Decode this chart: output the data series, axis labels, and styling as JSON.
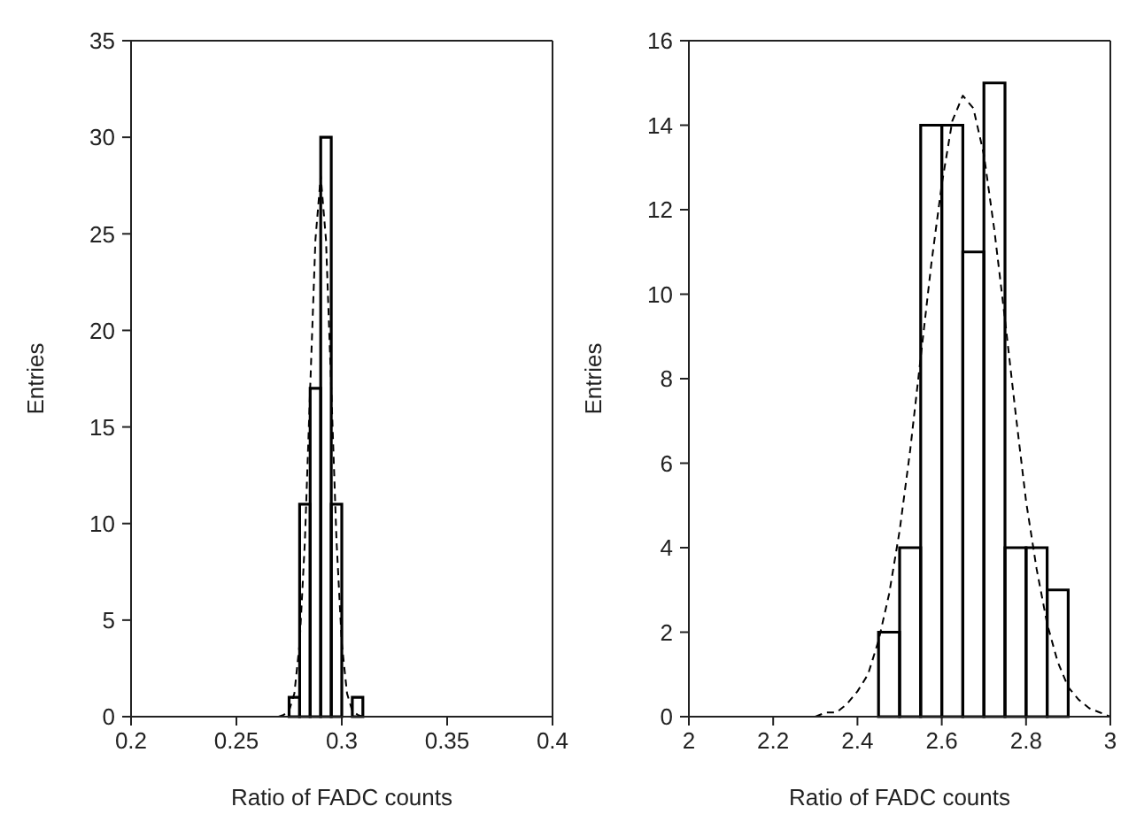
{
  "chart_data": [
    {
      "type": "histogram",
      "xlabel": "Ratio of FADC counts",
      "ylabel": "Entries",
      "color": "#000000",
      "xlim": [
        0.2,
        0.4
      ],
      "xticks": [
        0.2,
        0.25,
        0.3,
        0.35,
        0.4
      ],
      "ylim": [
        0,
        35
      ],
      "yticks": [
        0,
        5,
        10,
        15,
        20,
        25,
        30,
        35
      ],
      "bins": [
        0.275,
        0.28,
        0.285,
        0.29,
        0.295,
        0.3,
        0.305,
        0.31
      ],
      "values": [
        1,
        11,
        17,
        30,
        11,
        0,
        1
      ],
      "series": [
        {
          "type": "line",
          "color": "#000000",
          "line_style": "dashed",
          "x": [
            0.27,
            0.2725,
            0.275,
            0.2775,
            0.28,
            0.2825,
            0.285,
            0.2875,
            0.29,
            0.2925,
            0.295,
            0.2975,
            0.3,
            0.3025,
            0.305,
            0.3075,
            0.31
          ],
          "values": [
            0,
            0.1,
            0.3,
            1.2,
            3.8,
            9.1,
            17,
            24.7,
            28,
            24.7,
            17,
            9.1,
            3.8,
            1.2,
            0.3,
            0.1,
            0
          ]
        }
      ]
    },
    {
      "type": "histogram",
      "xlabel": "Ratio of FADC counts",
      "ylabel": "Entries",
      "color": "#000000",
      "xlim": [
        2,
        3
      ],
      "xticks": [
        2,
        2.2,
        2.4,
        2.6,
        2.8,
        3
      ],
      "ylim": [
        0,
        16
      ],
      "yticks": [
        0,
        2,
        4,
        6,
        8,
        10,
        12,
        14,
        16
      ],
      "bins": [
        2.45,
        2.5,
        2.55,
        2.6,
        2.65,
        2.7,
        2.75,
        2.8,
        2.85,
        2.9
      ],
      "values": [
        2,
        4,
        14,
        14,
        11,
        15,
        4,
        4,
        3
      ],
      "series": [
        {
          "type": "line",
          "color": "#000000",
          "line_style": "dashed",
          "x": [
            2.3,
            2.325,
            2.35,
            2.375,
            2.4,
            2.425,
            2.45,
            2.475,
            2.5,
            2.525,
            2.55,
            2.575,
            2.6,
            2.625,
            2.65,
            2.675,
            2.7,
            2.725,
            2.75,
            2.775,
            2.8,
            2.825,
            2.85,
            2.875,
            2.9,
            2.925,
            2.95,
            2.975,
            3
          ],
          "values": [
            0,
            0.1,
            0.1,
            0.3,
            0.6,
            1,
            1.8,
            2.9,
            4.4,
            6.3,
            8.5,
            10.7,
            12.6,
            14.1,
            14.7,
            14.4,
            13.3,
            11.5,
            9.4,
            7.2,
            5.1,
            3.5,
            2.2,
            1.3,
            0.7,
            0.4,
            0.2,
            0.1,
            0
          ]
        }
      ]
    }
  ]
}
